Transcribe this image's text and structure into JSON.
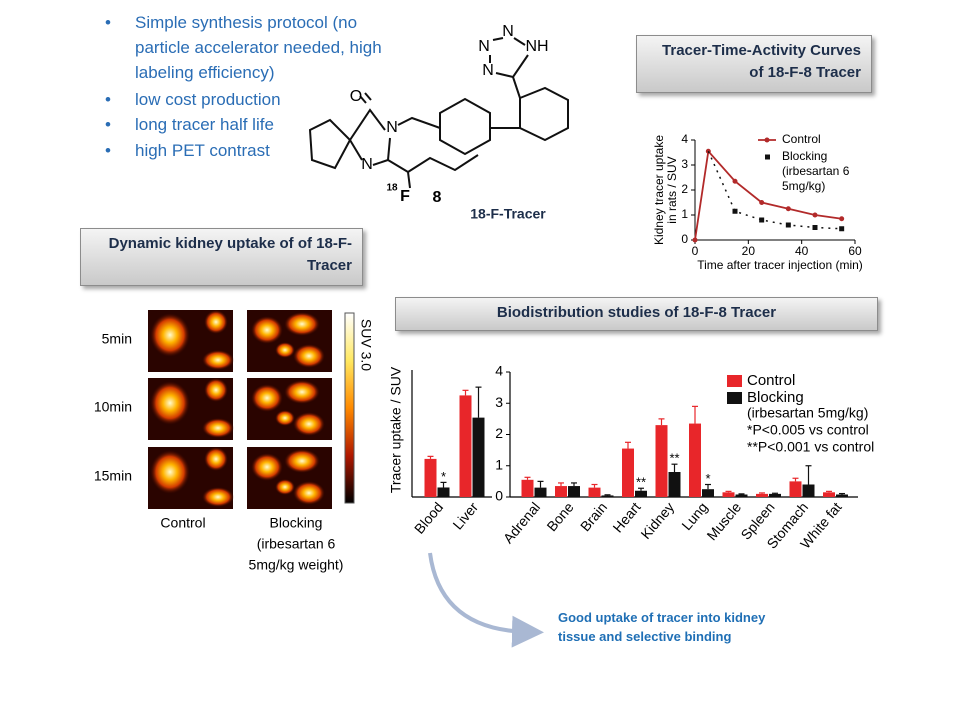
{
  "bullets": [
    "Simple synthesis protocol (no particle accelerator needed, high labeling efficiency)",
    "low cost production",
    "long tracer half life",
    "high PET contrast"
  ],
  "structure": {
    "atoms": [
      "N",
      "N",
      "NH",
      "N",
      "O",
      "N",
      "N",
      "18",
      "F",
      "8"
    ],
    "label": "18-F-Tracer"
  },
  "pet": {
    "title": "Dynamic kidney uptake of of 18-F-Tracer",
    "rows": [
      "5min",
      "10min",
      "15min"
    ],
    "columns": [
      [
        "Control"
      ],
      [
        "Blocking",
        "(irbesartan 6",
        "5mg/kg weight)"
      ]
    ],
    "colorbar": "SUV 3.0"
  },
  "footer": "Good uptake of tracer into kidney tissue and selective binding",
  "chart_data": [
    {
      "type": "line",
      "title": "Tracer-Time-Activity Curves of 18-F-8 Tracer",
      "ylabel": [
        "Kidney tracer uptake",
        "in rats / SUV"
      ],
      "xlabel": "Time after tracer injection (min)",
      "x": [
        0,
        5,
        15,
        25,
        35,
        45,
        55
      ],
      "xlim": [
        0,
        60
      ],
      "xticks": [
        0,
        20,
        40,
        60
      ],
      "ylim": [
        0,
        4
      ],
      "yticks": [
        0,
        1,
        2,
        3,
        4
      ],
      "series": [
        {
          "name": "Control",
          "color": "#b22a2a",
          "values": [
            0,
            3.55,
            2.35,
            1.5,
            1.25,
            1.0,
            0.85
          ]
        },
        {
          "name": "Blocking",
          "color": "#111111",
          "note": [
            "(irbesartan 6",
            "5mg/kg)"
          ],
          "values": [
            null,
            3.55,
            1.15,
            0.8,
            0.6,
            0.5,
            0.45
          ]
        }
      ]
    },
    {
      "type": "bar",
      "title": "Biodistribution studies of 18-F-8 Tracer",
      "ylabel": "Tracer uptake / SUV",
      "categories": [
        "Blood",
        "Liver"
      ],
      "ylim": [
        0,
        20
      ],
      "series": [
        {
          "name": "Control",
          "color": "#e8262a",
          "values": [
            6,
            16
          ],
          "errors": [
            0.4,
            0.8
          ],
          "significance": [
            null,
            null
          ]
        },
        {
          "name": "Blocking",
          "color": "#111111",
          "values": [
            1.5,
            12.5
          ],
          "errors": [
            0.8,
            4.8
          ],
          "significance": [
            "*",
            null
          ]
        }
      ]
    },
    {
      "type": "bar",
      "categories": [
        "Adrenal",
        "Bone",
        "Brain",
        "Heart",
        "Kidney",
        "Lung",
        "Muscle",
        "Spleen",
        "Stomach",
        "White fat"
      ],
      "ylim": [
        0,
        4
      ],
      "yticks": [
        0,
        1,
        2,
        3,
        4
      ],
      "legend_notes": [
        "(irbesartan 5mg/kg)",
        "*P<0.005 vs control",
        "**P<0.001 vs control"
      ],
      "series": [
        {
          "name": "Control",
          "color": "#e8262a",
          "values": [
            0.55,
            0.35,
            0.3,
            1.55,
            2.3,
            2.35,
            0.15,
            0.1,
            0.5,
            0.15
          ],
          "errors": [
            0.08,
            0.1,
            0.1,
            0.2,
            0.2,
            0.55,
            0.03,
            0.03,
            0.1,
            0.03
          ],
          "significance": [
            null,
            null,
            null,
            null,
            null,
            null,
            null,
            null,
            null,
            null
          ]
        },
        {
          "name": "Blocking",
          "color": "#111111",
          "values": [
            0.3,
            0.35,
            0.05,
            0.2,
            0.8,
            0.25,
            0.08,
            0.1,
            0.4,
            0.08
          ],
          "errors": [
            0.2,
            0.1,
            0.02,
            0.08,
            0.25,
            0.15,
            0.02,
            0.02,
            0.6,
            0.03
          ],
          "significance": [
            null,
            null,
            null,
            "**",
            "**",
            "*",
            null,
            null,
            null,
            null
          ]
        }
      ]
    }
  ]
}
